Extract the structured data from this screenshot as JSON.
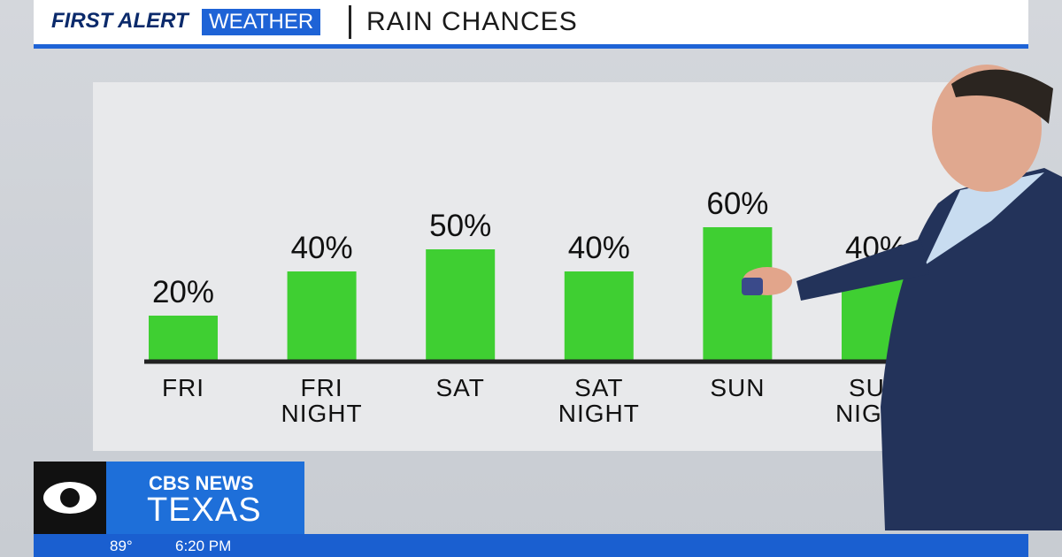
{
  "header": {
    "brand_first": "FIRST ALERT",
    "brand_second": "WEATHER",
    "title": "RAIN CHANCES"
  },
  "chart_data": {
    "type": "bar",
    "categories": [
      "FRI",
      "FRI NIGHT",
      "SAT",
      "SAT NIGHT",
      "SUN",
      "SUN NIGHT"
    ],
    "values": [
      20,
      40,
      50,
      40,
      60,
      40
    ],
    "value_labels": [
      "20%",
      "40%",
      "50%",
      "40%",
      "60%",
      "40%"
    ],
    "color": "#3fcf32"
  },
  "lower_third": {
    "network": "CBS NEWS",
    "station": "TEXAS",
    "temperature": "89°",
    "time": "6:20 PM"
  }
}
